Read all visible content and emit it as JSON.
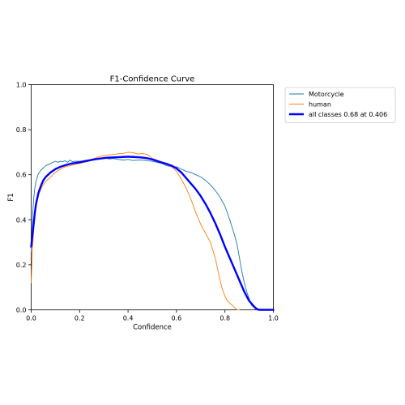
{
  "chart_data": {
    "type": "line",
    "title": "F1-Confidence Curve",
    "xlabel": "Confidence",
    "ylabel": "F1",
    "xlim": [
      0,
      1
    ],
    "ylim": [
      0,
      1
    ],
    "xticks": [
      "0.0",
      "0.2",
      "0.4",
      "0.6",
      "0.8",
      "1.0"
    ],
    "yticks": [
      "0.0",
      "0.2",
      "0.4",
      "0.6",
      "0.8",
      "1.0"
    ],
    "grid": false,
    "legend_position": "outside-top-right",
    "series": [
      {
        "name": "Motorcycle",
        "color": "#1f77b4",
        "x": [
          0,
          0.003,
          0.006,
          0.01,
          0.015,
          0.02,
          0.025,
          0.03,
          0.04,
          0.05,
          0.06,
          0.07,
          0.08,
          0.09,
          0.1,
          0.11,
          0.12,
          0.13,
          0.14,
          0.15,
          0.16,
          0.17,
          0.18,
          0.2,
          0.22,
          0.24,
          0.26,
          0.28,
          0.3,
          0.32,
          0.34,
          0.36,
          0.38,
          0.4,
          0.42,
          0.44,
          0.46,
          0.48,
          0.5,
          0.52,
          0.54,
          0.56,
          0.58,
          0.6,
          0.62,
          0.64,
          0.66,
          0.68,
          0.7,
          0.72,
          0.74,
          0.76,
          0.78,
          0.8,
          0.82,
          0.84,
          0.85,
          0.86,
          0.87,
          0.88,
          0.89,
          0.9,
          0.91,
          0.92,
          0.93,
          0.94,
          1.0
        ],
        "y": [
          0.26,
          0.34,
          0.42,
          0.49,
          0.54,
          0.57,
          0.59,
          0.605,
          0.62,
          0.63,
          0.64,
          0.645,
          0.65,
          0.655,
          0.66,
          0.655,
          0.66,
          0.658,
          0.662,
          0.655,
          0.665,
          0.658,
          0.66,
          0.66,
          0.662,
          0.665,
          0.668,
          0.672,
          0.675,
          0.67,
          0.672,
          0.668,
          0.665,
          0.668,
          0.663,
          0.665,
          0.665,
          0.662,
          0.66,
          0.655,
          0.65,
          0.64,
          0.635,
          0.635,
          0.625,
          0.615,
          0.61,
          0.6,
          0.59,
          0.575,
          0.555,
          0.53,
          0.5,
          0.46,
          0.4,
          0.33,
          0.29,
          0.23,
          0.17,
          0.12,
          0.08,
          0.05,
          0.02,
          0.01,
          0.0,
          0.0,
          0.0
        ]
      },
      {
        "name": "human",
        "color": "#ff7f0e",
        "x": [
          0,
          0.003,
          0.006,
          0.01,
          0.015,
          0.02,
          0.025,
          0.03,
          0.04,
          0.05,
          0.06,
          0.07,
          0.08,
          0.09,
          0.1,
          0.12,
          0.14,
          0.16,
          0.18,
          0.2,
          0.22,
          0.24,
          0.26,
          0.28,
          0.3,
          0.32,
          0.34,
          0.36,
          0.38,
          0.4,
          0.42,
          0.44,
          0.46,
          0.48,
          0.5,
          0.52,
          0.54,
          0.56,
          0.58,
          0.6,
          0.62,
          0.64,
          0.66,
          0.68,
          0.7,
          0.72,
          0.74,
          0.76,
          0.77,
          0.78,
          0.79,
          0.8,
          0.81,
          0.82,
          0.83,
          0.84,
          0.85,
          0.86
        ],
        "y": [
          0.12,
          0.2,
          0.28,
          0.35,
          0.41,
          0.46,
          0.49,
          0.51,
          0.535,
          0.555,
          0.57,
          0.58,
          0.59,
          0.6,
          0.61,
          0.625,
          0.635,
          0.64,
          0.645,
          0.65,
          0.655,
          0.66,
          0.672,
          0.68,
          0.685,
          0.688,
          0.69,
          0.693,
          0.695,
          0.7,
          0.698,
          0.692,
          0.694,
          0.69,
          0.672,
          0.665,
          0.655,
          0.645,
          0.635,
          0.615,
          0.58,
          0.54,
          0.49,
          0.43,
          0.38,
          0.34,
          0.3,
          0.23,
          0.18,
          0.13,
          0.09,
          0.06,
          0.04,
          0.03,
          0.02,
          0.01,
          0.0,
          0.0
        ]
      },
      {
        "name": "all classes 0.68 at 0.406",
        "color": "#0000ff",
        "x": [
          0,
          0.005,
          0.01,
          0.015,
          0.02,
          0.03,
          0.04,
          0.05,
          0.06,
          0.08,
          0.1,
          0.12,
          0.14,
          0.16,
          0.18,
          0.2,
          0.22,
          0.24,
          0.26,
          0.28,
          0.3,
          0.32,
          0.34,
          0.36,
          0.38,
          0.4,
          0.42,
          0.44,
          0.46,
          0.48,
          0.5,
          0.52,
          0.54,
          0.56,
          0.58,
          0.6,
          0.62,
          0.64,
          0.66,
          0.68,
          0.7,
          0.72,
          0.74,
          0.76,
          0.78,
          0.8,
          0.82,
          0.84,
          0.86,
          0.88,
          0.9,
          0.92,
          0.93,
          0.94,
          1.0
        ],
        "y": [
          0.28,
          0.33,
          0.38,
          0.43,
          0.47,
          0.52,
          0.55,
          0.575,
          0.59,
          0.61,
          0.625,
          0.635,
          0.642,
          0.648,
          0.652,
          0.655,
          0.66,
          0.664,
          0.668,
          0.671,
          0.674,
          0.676,
          0.677,
          0.678,
          0.679,
          0.68,
          0.679,
          0.678,
          0.676,
          0.673,
          0.668,
          0.661,
          0.654,
          0.648,
          0.64,
          0.628,
          0.61,
          0.585,
          0.56,
          0.535,
          0.505,
          0.47,
          0.43,
          0.385,
          0.335,
          0.28,
          0.23,
          0.18,
          0.13,
          0.08,
          0.04,
          0.015,
          0.005,
          0.0,
          0.0
        ]
      }
    ]
  }
}
